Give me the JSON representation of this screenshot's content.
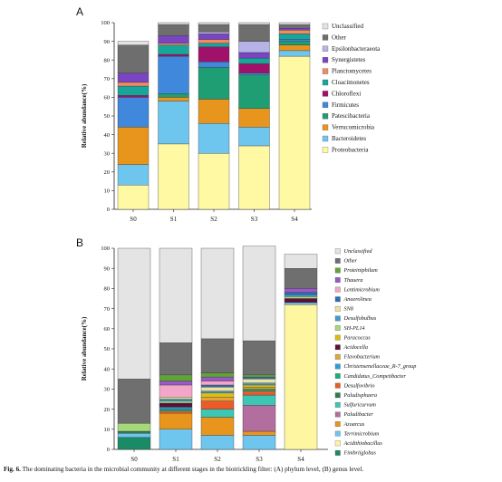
{
  "chart_data": [
    {
      "type": "bar",
      "stacked": true,
      "panel_label": "A",
      "ylabel": "Relative abundance(%)",
      "ylim": [
        0,
        100
      ],
      "yticks": [
        0,
        10,
        20,
        30,
        40,
        50,
        60,
        70,
        80,
        90,
        100
      ],
      "categories": [
        "S0",
        "S1",
        "S2",
        "S3",
        "S4"
      ],
      "legend_position": "right",
      "series": [
        {
          "name": "Proteobacteria",
          "color": "#FFF9A3",
          "values": [
            13,
            35,
            30,
            34,
            82
          ]
        },
        {
          "name": "Bacteroidetes",
          "color": "#6EC6EE",
          "values": [
            11,
            23,
            16,
            10,
            3
          ]
        },
        {
          "name": "Verrucomicrobia",
          "color": "#E8951E",
          "values": [
            20,
            2,
            13,
            10,
            3
          ]
        },
        {
          "name": "Patescibacteria",
          "color": "#1E9E72",
          "values": [
            0,
            2,
            17,
            18,
            2
          ]
        },
        {
          "name": "Firmicutes",
          "color": "#3F88DB",
          "values": [
            16,
            20,
            3,
            1,
            1
          ]
        },
        {
          "name": "Chloroflexi",
          "color": "#A0126A",
          "values": [
            1,
            1,
            8,
            5,
            0
          ]
        },
        {
          "name": "Cloacimonetes",
          "color": "#17A69A",
          "values": [
            5,
            5,
            2,
            3,
            3
          ]
        },
        {
          "name": "Planctomycetes",
          "color": "#F18B64",
          "values": [
            2,
            1,
            2,
            0,
            2
          ]
        },
        {
          "name": "Synergistetes",
          "color": "#7A45C2",
          "values": [
            5,
            4,
            3,
            3,
            1
          ]
        },
        {
          "name": "Epsilonbacteraeota",
          "color": "#B6B3E6",
          "values": [
            0,
            0,
            1,
            6,
            0
          ]
        },
        {
          "name": "Other",
          "color": "#6E6E6E",
          "values": [
            15,
            6,
            4,
            9,
            2
          ]
        },
        {
          "name": "Unclassified",
          "color": "#E4E4E4",
          "values": [
            2,
            1,
            1,
            1,
            1
          ]
        }
      ]
    },
    {
      "type": "bar",
      "stacked": true,
      "panel_label": "B",
      "ylabel": "Relative abundance(%)",
      "ylim": [
        0,
        100
      ],
      "yticks": [
        0,
        10,
        20,
        30,
        40,
        50,
        60,
        70,
        80,
        90,
        100
      ],
      "categories": [
        "S0",
        "S1",
        "S2",
        "S3",
        "S4"
      ],
      "legend_position": "right",
      "series": [
        {
          "name": "Fimbriiglobus",
          "color": "#1B8A66",
          "values": [
            6,
            0,
            0,
            0,
            0
          ]
        },
        {
          "name": "Acidithiobacillus",
          "color": "#FFF6A2",
          "values": [
            0,
            0,
            0,
            0,
            72
          ]
        },
        {
          "name": "Terrimicrobium",
          "color": "#6EC6EE",
          "values": [
            2,
            10,
            7,
            7,
            1
          ]
        },
        {
          "name": "Azoarcus",
          "color": "#E8951E",
          "values": [
            0,
            8,
            9,
            2,
            0
          ]
        },
        {
          "name": "Paludibacter",
          "color": "#B16E9E",
          "values": [
            0,
            0,
            0,
            13,
            0
          ]
        },
        {
          "name": "Sulfuricurvum",
          "color": "#3CC7B5",
          "values": [
            0,
            0,
            4,
            5,
            0
          ]
        },
        {
          "name": "Paludisphaera",
          "color": "#2E7C52",
          "values": [
            1,
            0,
            0,
            0,
            0
          ]
        },
        {
          "name": "Desulfovibrio",
          "color": "#EC5A2A",
          "values": [
            0,
            1,
            4,
            2,
            0
          ]
        },
        {
          "name": "Candidatus_Competibacter",
          "color": "#18B07E",
          "values": [
            0,
            1,
            0,
            1,
            0
          ]
        },
        {
          "name": "Christensenellaceae_R-7_group",
          "color": "#2E9ED9",
          "values": [
            0,
            1,
            0,
            0,
            0
          ]
        },
        {
          "name": "Flavobacterium",
          "color": "#E7A436",
          "values": [
            0,
            0,
            2,
            1,
            0
          ]
        },
        {
          "name": "Acidocella",
          "color": "#5C0F3A",
          "values": [
            0,
            2,
            0,
            0,
            2
          ]
        },
        {
          "name": "Paracoccus",
          "color": "#DCBE0E",
          "values": [
            0,
            0,
            2,
            1,
            0
          ]
        },
        {
          "name": "SH-PL14",
          "color": "#A7D97A",
          "values": [
            4,
            1,
            0,
            0,
            1
          ]
        },
        {
          "name": "Desulfobulbus",
          "color": "#3E9AD1",
          "values": [
            0,
            1,
            1,
            1,
            1
          ]
        },
        {
          "name": "SN8",
          "color": "#EFE29E",
          "values": [
            0,
            1,
            2,
            2,
            0
          ]
        },
        {
          "name": "Anaerolinea",
          "color": "#2B6FB6",
          "values": [
            0,
            0,
            1,
            1,
            1
          ]
        },
        {
          "name": "Lentimicrobium",
          "color": "#F3A6C8",
          "values": [
            0,
            6,
            2,
            0,
            0
          ]
        },
        {
          "name": "Thauera",
          "color": "#9B58C7",
          "values": [
            0,
            2,
            2,
            0,
            2
          ]
        },
        {
          "name": "Proteiniphilum",
          "color": "#5EA536",
          "values": [
            0,
            3,
            2,
            1,
            0
          ]
        },
        {
          "name": "Other",
          "color": "#6F6F6F",
          "values": [
            22,
            16,
            17,
            17,
            10
          ]
        },
        {
          "name": "Unclassified",
          "color": "#E4E4E4",
          "values": [
            65,
            47,
            45,
            47,
            7
          ]
        }
      ]
    }
  ],
  "caption": {
    "label": "Fig. 6.",
    "text": "The dominating bacteria in the microbial community at different stages in the biotrickling filter: (A) phylum level, (B) genus level."
  }
}
